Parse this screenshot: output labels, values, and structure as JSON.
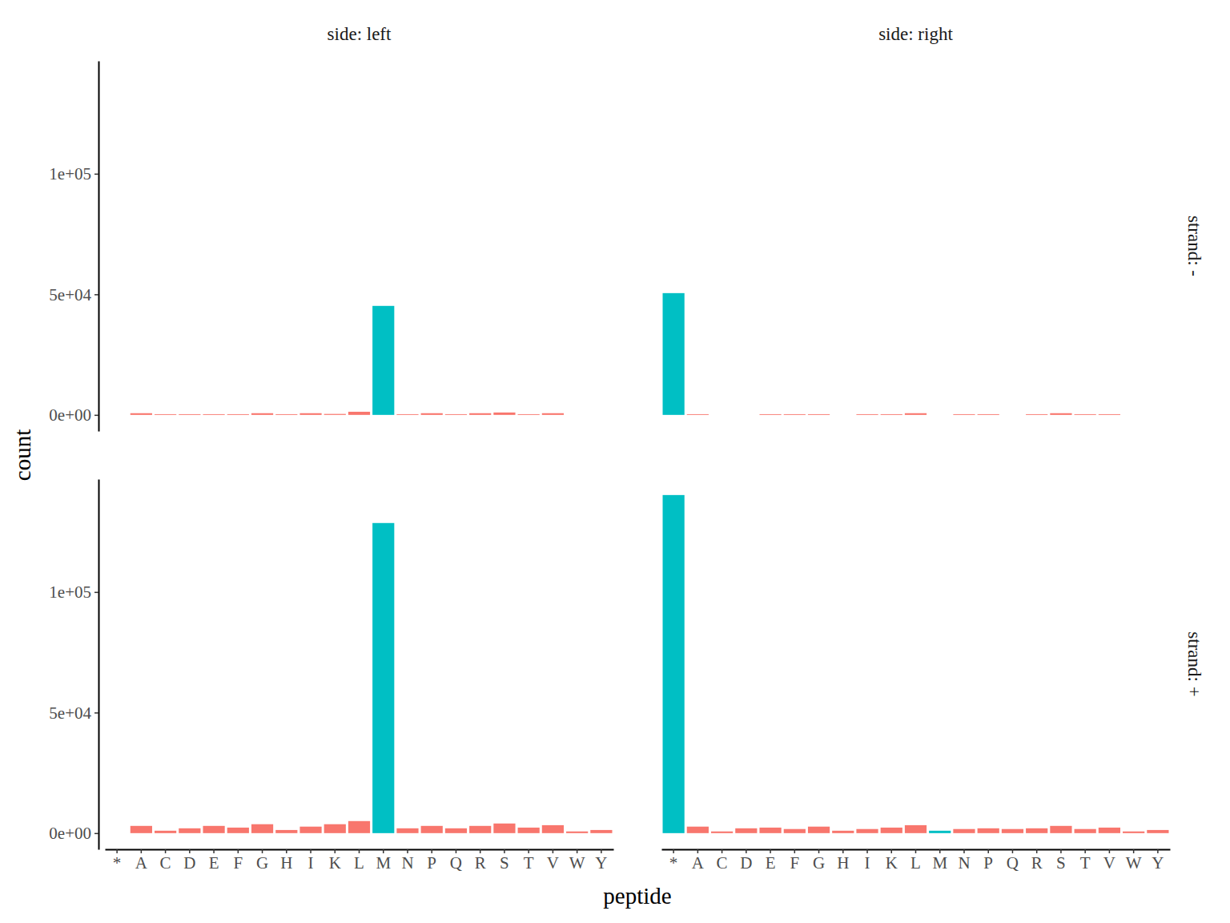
{
  "chart_data": {
    "type": "bar",
    "x_label": "peptide",
    "y_label": "count",
    "facet_columns": [
      "side: left",
      "side: right"
    ],
    "facet_rows": [
      "strand: -",
      "strand: +"
    ],
    "categories": [
      "*",
      "A",
      "C",
      "D",
      "E",
      "F",
      "G",
      "H",
      "I",
      "K",
      "L",
      "M",
      "N",
      "P",
      "Q",
      "R",
      "S",
      "T",
      "V",
      "W",
      "Y"
    ],
    "ylim": [
      -6700,
      146800
    ],
    "yticks": [
      {
        "value": 0,
        "label": "0e+00"
      },
      {
        "value": 50000,
        "label": "5e+04"
      },
      {
        "value": 100000,
        "label": "1e+05"
      }
    ],
    "panels": [
      [
        {
          "values": [
            null,
            700,
            300,
            300,
            300,
            300,
            700,
            300,
            700,
            400,
            1300,
            45200,
            300,
            700,
            300,
            700,
            1000,
            300,
            700,
            null,
            null
          ],
          "colors": [
            "#F8766D",
            "#F8766D",
            "#F8766D",
            "#F8766D",
            "#F8766D",
            "#F8766D",
            "#F8766D",
            "#F8766D",
            "#F8766D",
            "#F8766D",
            "#F8766D",
            "#00BFC4",
            "#F8766D",
            "#F8766D",
            "#F8766D",
            "#F8766D",
            "#F8766D",
            "#F8766D",
            "#F8766D",
            "#F8766D",
            "#F8766D"
          ]
        },
        {
          "values": [
            50500,
            300,
            null,
            null,
            300,
            300,
            300,
            null,
            300,
            300,
            700,
            null,
            300,
            300,
            null,
            300,
            700,
            300,
            300,
            null,
            null
          ],
          "colors": [
            "#00BFC4",
            "#F8766D",
            "#F8766D",
            "#F8766D",
            "#F8766D",
            "#F8766D",
            "#F8766D",
            "#F8766D",
            "#F8766D",
            "#F8766D",
            "#F8766D",
            "#F8766D",
            "#F8766D",
            "#F8766D",
            "#F8766D",
            "#F8766D",
            "#F8766D",
            "#F8766D",
            "#F8766D",
            "#F8766D",
            "#F8766D"
          ]
        }
      ],
      [
        {
          "values": [
            null,
            3000,
            1000,
            2000,
            3000,
            2300,
            3700,
            1300,
            2700,
            3700,
            5000,
            128600,
            2000,
            3000,
            2000,
            3000,
            4000,
            2300,
            3300,
            700,
            1300
          ],
          "colors": [
            "#F8766D",
            "#F8766D",
            "#F8766D",
            "#F8766D",
            "#F8766D",
            "#F8766D",
            "#F8766D",
            "#F8766D",
            "#F8766D",
            "#F8766D",
            "#F8766D",
            "#00BFC4",
            "#F8766D",
            "#F8766D",
            "#F8766D",
            "#F8766D",
            "#F8766D",
            "#F8766D",
            "#F8766D",
            "#F8766D",
            "#F8766D"
          ]
        },
        {
          "values": [
            140200,
            2700,
            700,
            2000,
            2300,
            1700,
            2700,
            1000,
            1700,
            2300,
            3300,
            1000,
            1700,
            2000,
            1700,
            2000,
            3000,
            1700,
            2300,
            700,
            1300
          ],
          "colors": [
            "#00BFC4",
            "#F8766D",
            "#F8766D",
            "#F8766D",
            "#F8766D",
            "#F8766D",
            "#F8766D",
            "#F8766D",
            "#F8766D",
            "#F8766D",
            "#F8766D",
            "#00BFC4",
            "#F8766D",
            "#F8766D",
            "#F8766D",
            "#F8766D",
            "#F8766D",
            "#F8766D",
            "#F8766D",
            "#F8766D",
            "#F8766D"
          ]
        }
      ]
    ]
  }
}
